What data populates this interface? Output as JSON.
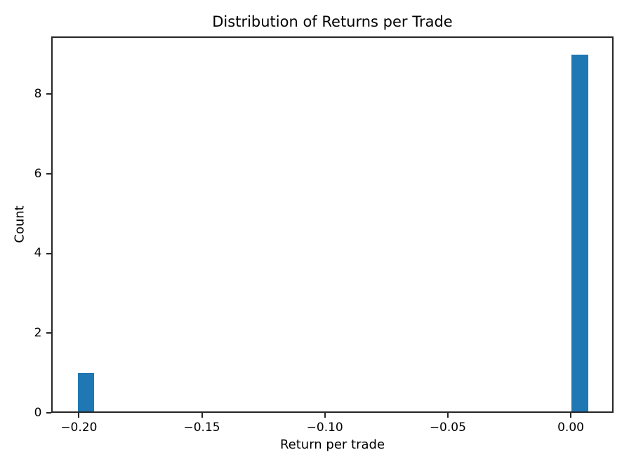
{
  "chart_data": {
    "type": "bar",
    "subtype": "histogram",
    "title": "Distribution of Returns per Trade",
    "xlabel": "Return per trade",
    "ylabel": "Count",
    "bar_color": "#1f77b4",
    "axis_color": "#262626",
    "background_color": "#ffffff",
    "grid": false,
    "legend": null,
    "xlim": [
      -0.2111,
      0.0174
    ],
    "ylim": [
      0,
      9.45
    ],
    "xticks": [
      {
        "value": -0.2,
        "label": "−0.20"
      },
      {
        "value": -0.15,
        "label": "−0.15"
      },
      {
        "value": -0.1,
        "label": "−0.10"
      },
      {
        "value": -0.05,
        "label": "−0.05"
      },
      {
        "value": 0.0,
        "label": "0.00"
      }
    ],
    "yticks": [
      {
        "value": 0,
        "label": "0"
      },
      {
        "value": 2,
        "label": "2"
      },
      {
        "value": 4,
        "label": "4"
      },
      {
        "value": 6,
        "label": "6"
      },
      {
        "value": 8,
        "label": "8"
      }
    ],
    "bars": [
      {
        "bin_start": -0.2005,
        "bin_end": -0.1937,
        "count": 1
      },
      {
        "bin_start": 0.0002,
        "bin_end": 0.007,
        "count": 9
      }
    ]
  }
}
